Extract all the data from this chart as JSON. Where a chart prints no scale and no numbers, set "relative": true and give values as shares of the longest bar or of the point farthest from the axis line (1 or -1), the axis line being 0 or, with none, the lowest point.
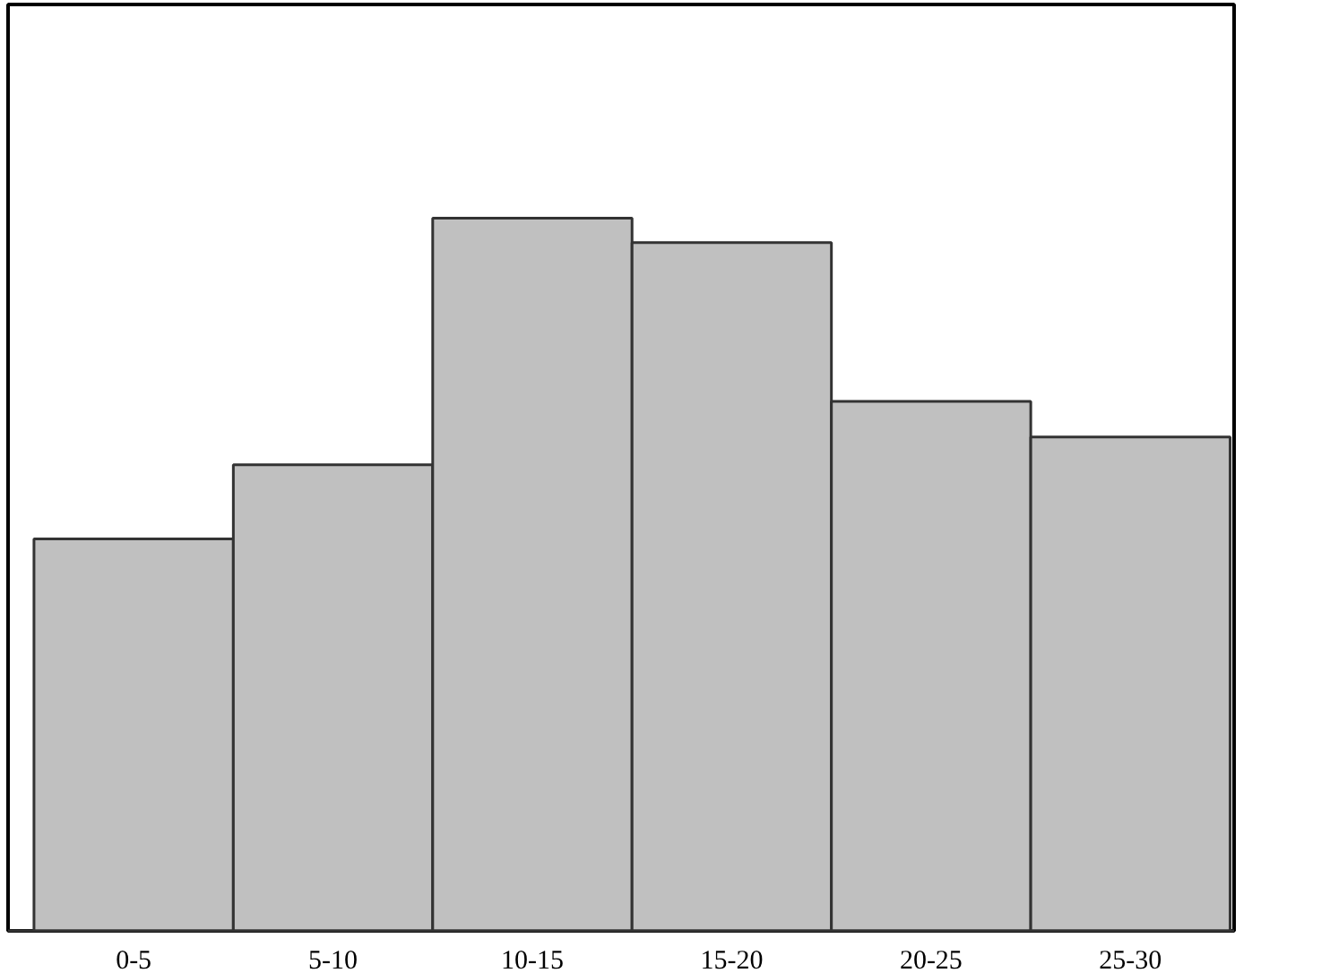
{
  "chart_data": {
    "type": "bar",
    "relative": true,
    "categories": [
      "0-5",
      "5-10",
      "10-15",
      "15-20",
      "20-25",
      "25-30"
    ],
    "values": [
      0.55,
      0.654,
      1,
      0.966,
      0.743,
      0.693
    ],
    "color": "#c0c0c0"
  }
}
